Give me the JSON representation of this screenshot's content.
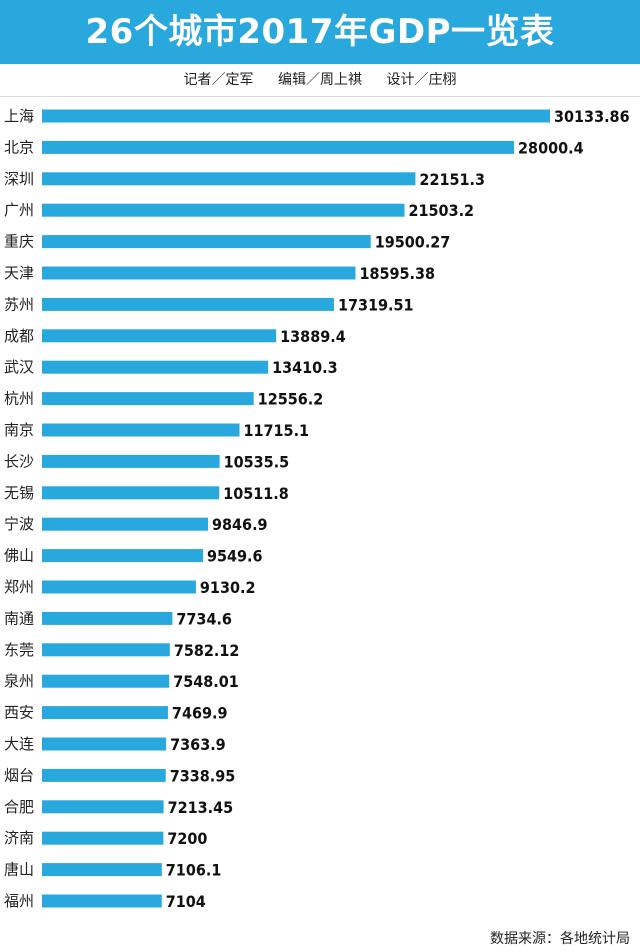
{
  "header": {
    "title": "26个城市2017年GDP一览表",
    "credits": [
      "记者／定军",
      "编辑／周上祺",
      "设计／庄栩"
    ]
  },
  "footer": {
    "source": "数据来源：各地统计局"
  },
  "colors": {
    "header_bg": "#29a8dd",
    "bar": "#29a8dd",
    "value_text": "#111111"
  },
  "chart_data": {
    "type": "bar",
    "orientation": "horizontal",
    "title": "26个城市2017年GDP一览表",
    "categories": [
      "上海",
      "北京",
      "深圳",
      "广州",
      "重庆",
      "天津",
      "苏州",
      "成都",
      "武汉",
      "杭州",
      "南京",
      "长沙",
      "无锡",
      "宁波",
      "佛山",
      "郑州",
      "南通",
      "东莞",
      "泉州",
      "西安",
      "大连",
      "烟台",
      "合肥",
      "济南",
      "唐山",
      "福州"
    ],
    "values": [
      30133.86,
      28000.4,
      22151.3,
      21503.2,
      19500.27,
      18595.38,
      17319.51,
      13889.4,
      13410.3,
      12556.2,
      11715.1,
      10535.5,
      10511.8,
      9846.9,
      9549.6,
      9130.2,
      7734.6,
      7582.12,
      7548.01,
      7469.9,
      7363.9,
      7338.95,
      7213.45,
      7200,
      7106.1,
      7104
    ],
    "value_labels": [
      "30133.86",
      "28000.4",
      "22151.3",
      "21503.2",
      "19500.27",
      "18595.38",
      "17319.51",
      "13889.4",
      "13410.3",
      "12556.2",
      "11715.1",
      "10535.5",
      "10511.8",
      "9846.9",
      "9549.6",
      "9130.2",
      "7734.6",
      "7582.12",
      "7548.01",
      "7469.9",
      "7363.9",
      "7338.95",
      "7213.45",
      "7200",
      "7106.1",
      "7104"
    ],
    "grid": false,
    "legend": "none"
  }
}
